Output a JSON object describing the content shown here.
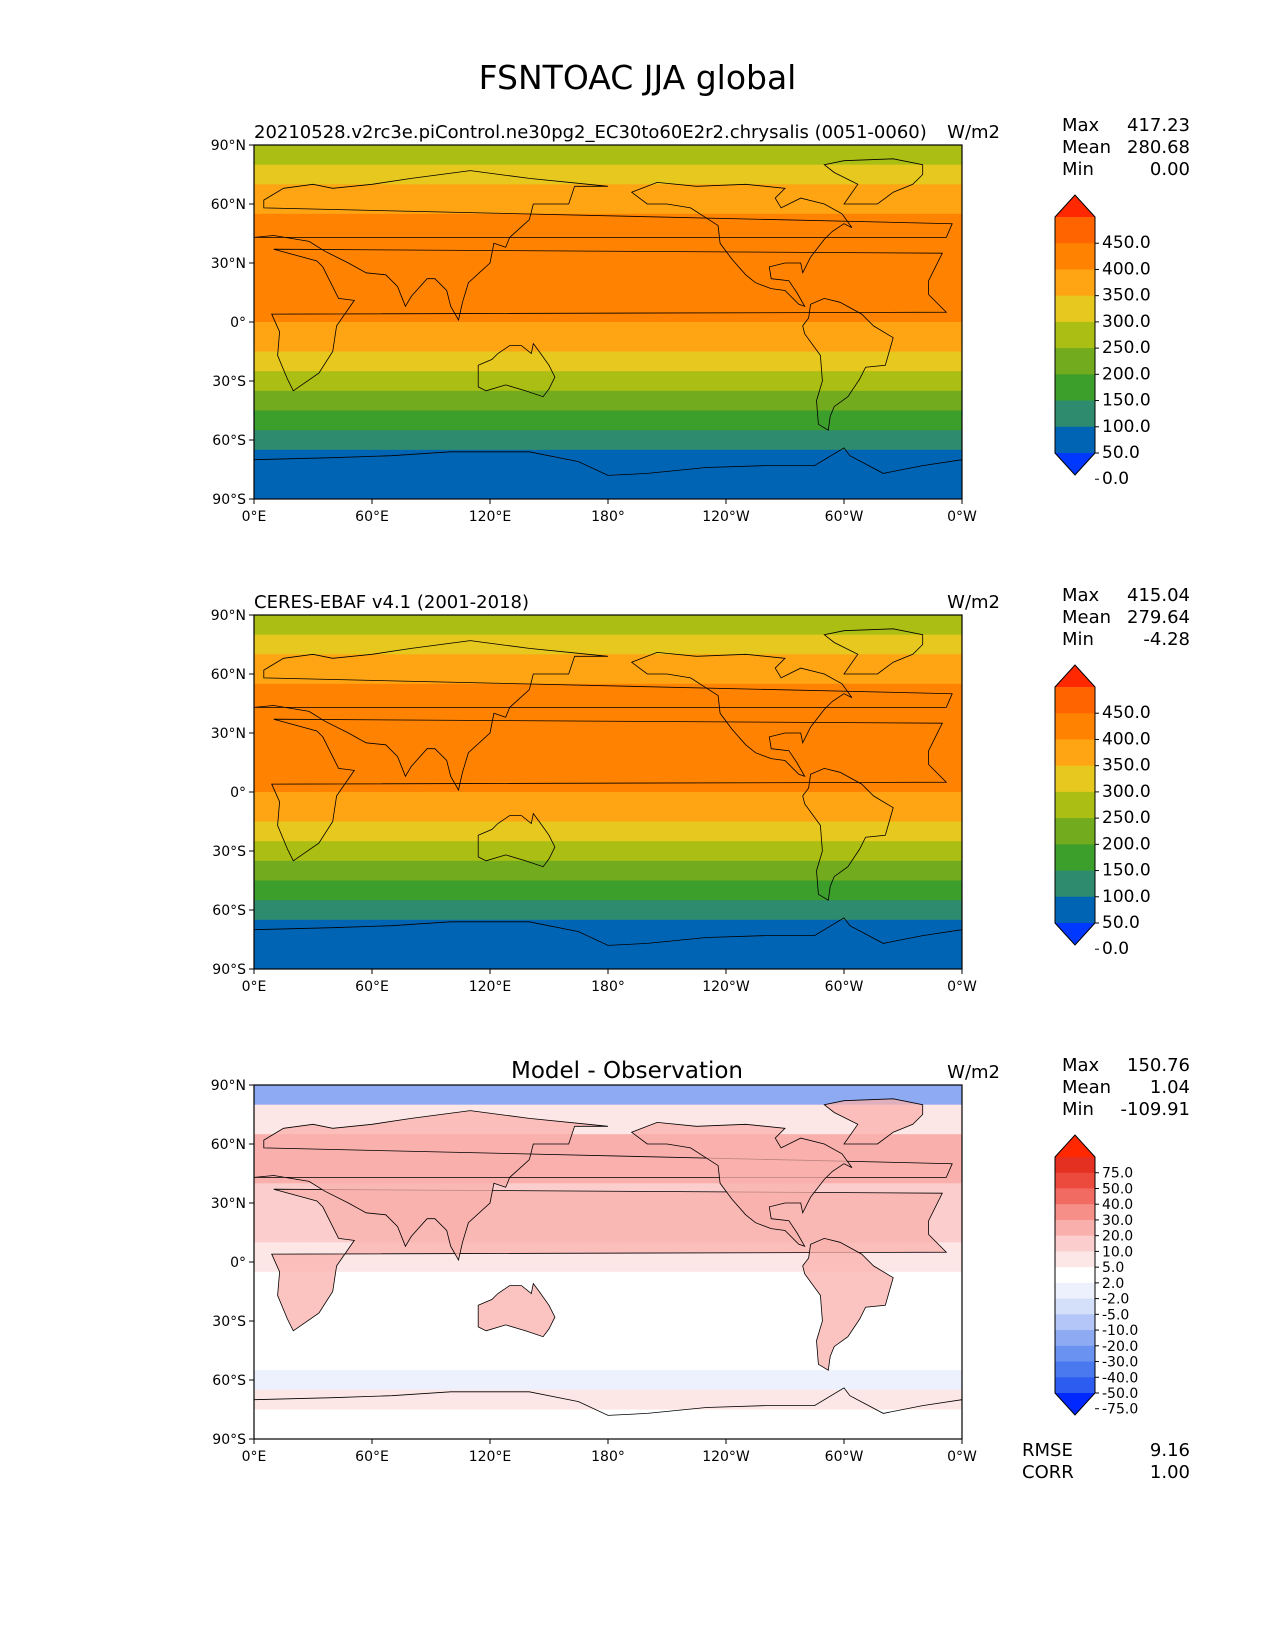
{
  "figure": {
    "title": "FSNTOAC JJA global"
  },
  "axes": {
    "lat_ticks": [
      "90°N",
      "60°N",
      "30°N",
      "0°",
      "30°S",
      "60°S",
      "90°S"
    ],
    "lon_ticks": [
      "0°E",
      "60°E",
      "120°E",
      "180°",
      "120°W",
      "60°W",
      "0°W"
    ]
  },
  "panels": [
    {
      "title_left": "20210528.v2rc3e.piControl.ne30pg2_EC30to60E2r2.chrysalis (0051-0060)",
      "title_center": "",
      "title_right": "W/m2",
      "stats": {
        "max_label": "Max",
        "max": "417.23",
        "mean_label": "Mean",
        "mean": "280.68",
        "min_label": "Min",
        "min": "0.00"
      },
      "colorbar_labels": [
        "450.0",
        "400.0",
        "350.0",
        "300.0",
        "250.0",
        "200.0",
        "150.0",
        "100.0",
        "50.0",
        "0.0"
      ]
    },
    {
      "title_left": "CERES-EBAF v4.1 (2001-2018)",
      "title_center": "",
      "title_right": "W/m2",
      "stats": {
        "max_label": "Max",
        "max": "415.04",
        "mean_label": "Mean",
        "mean": "279.64",
        "min_label": "Min",
        "min": "-4.28"
      },
      "colorbar_labels": [
        "450.0",
        "400.0",
        "350.0",
        "300.0",
        "250.0",
        "200.0",
        "150.0",
        "100.0",
        "50.0",
        "0.0"
      ]
    },
    {
      "title_left": "",
      "title_center": "Model - Observation",
      "title_right": "W/m2",
      "stats": {
        "max_label": "Max",
        "max": "150.76",
        "mean_label": "Mean",
        "mean": "1.04",
        "min_label": "Min",
        "min": "-109.91"
      },
      "colorbar_labels": [
        "75.0",
        "50.0",
        "40.0",
        "30.0",
        "20.0",
        "10.0",
        "5.0",
        "2.0",
        "-2.0",
        "-5.0",
        "-10.0",
        "-20.0",
        "-30.0",
        "-40.0",
        "-50.0",
        "-75.0"
      ],
      "footer": {
        "rmse_label": "RMSE",
        "rmse": "9.16",
        "corr_label": "CORR",
        "corr": "1.00"
      }
    }
  ],
  "colors": {
    "abs_scale": [
      "#0038ff",
      "#0064b4",
      "#2e8b6e",
      "#3c9f2c",
      "#73ab1e",
      "#aabe14",
      "#e6c81e",
      "#ffa514",
      "#ff8200",
      "#ff6400",
      "#ff2800"
    ],
    "diff_scale": [
      "#0028ff",
      "#2c5cf0",
      "#4a78ee",
      "#6a92f0",
      "#8eaaf3",
      "#b4c6f7",
      "#d4dffa",
      "#ecf1fd",
      "#ffffff",
      "#fde6e6",
      "#fccdcd",
      "#f9b0ac",
      "#f68f88",
      "#f26b62",
      "#ec4a3c",
      "#e43020",
      "#ff2800"
    ]
  },
  "chart_data": [
    {
      "type": "heatmap",
      "title": "20210528.v2rc3e.piControl.ne30pg2_EC30to60E2r2.chrysalis (0051-0060)",
      "units": "W/m2",
      "xlabel": "",
      "ylabel": "",
      "x_range_deg": [
        0,
        360
      ],
      "y_range_deg": [
        -90,
        90
      ],
      "zonal_bands": [
        {
          "lat": [
            80,
            90
          ],
          "value": 225
        },
        {
          "lat": [
            70,
            80
          ],
          "value": 275
        },
        {
          "lat": [
            55,
            70
          ],
          "value": 330
        },
        {
          "lat": [
            40,
            55
          ],
          "value": 365
        },
        {
          "lat": [
            15,
            40
          ],
          "value": 390
        },
        {
          "lat": [
            0,
            15
          ],
          "value": 360
        },
        {
          "lat": [
            -15,
            0
          ],
          "value": 330
        },
        {
          "lat": [
            -25,
            -15
          ],
          "value": 290
        },
        {
          "lat": [
            -35,
            -25
          ],
          "value": 240
        },
        {
          "lat": [
            -45,
            -35
          ],
          "value": 190
        },
        {
          "lat": [
            -55,
            -45
          ],
          "value": 140
        },
        {
          "lat": [
            -65,
            -55
          ],
          "value": 70
        },
        {
          "lat": [
            -85,
            -65
          ],
          "value": 25
        },
        {
          "lat": [
            -90,
            -85
          ],
          "value": 0
        }
      ],
      "stats": {
        "max": 417.23,
        "mean": 280.68,
        "min": 0.0
      },
      "levels": [
        0,
        50,
        100,
        150,
        200,
        250,
        300,
        350,
        400,
        450
      ]
    },
    {
      "type": "heatmap",
      "title": "CERES-EBAF v4.1 (2001-2018)",
      "units": "W/m2",
      "xlabel": "",
      "ylabel": "",
      "x_range_deg": [
        0,
        360
      ],
      "y_range_deg": [
        -90,
        90
      ],
      "zonal_bands": [
        {
          "lat": [
            80,
            90
          ],
          "value": 225
        },
        {
          "lat": [
            70,
            80
          ],
          "value": 270
        },
        {
          "lat": [
            55,
            70
          ],
          "value": 325
        },
        {
          "lat": [
            40,
            55
          ],
          "value": 360
        },
        {
          "lat": [
            15,
            40
          ],
          "value": 390
        },
        {
          "lat": [
            0,
            15
          ],
          "value": 360
        },
        {
          "lat": [
            -15,
            0
          ],
          "value": 330
        },
        {
          "lat": [
            -25,
            -15
          ],
          "value": 290
        },
        {
          "lat": [
            -35,
            -25
          ],
          "value": 240
        },
        {
          "lat": [
            -45,
            -35
          ],
          "value": 190
        },
        {
          "lat": [
            -55,
            -45
          ],
          "value": 140
        },
        {
          "lat": [
            -65,
            -55
          ],
          "value": 70
        },
        {
          "lat": [
            -75,
            -65
          ],
          "value": 30
        },
        {
          "lat": [
            -90,
            -75
          ],
          "value": 0
        }
      ],
      "stats": {
        "max": 415.04,
        "mean": 279.64,
        "min": -4.28
      },
      "levels": [
        0,
        50,
        100,
        150,
        200,
        250,
        300,
        350,
        400,
        450
      ]
    },
    {
      "type": "heatmap",
      "title": "Model - Observation",
      "units": "W/m2",
      "xlabel": "",
      "ylabel": "",
      "x_range_deg": [
        0,
        360
      ],
      "y_range_deg": [
        -90,
        90
      ],
      "zonal_bands": [
        {
          "lat": [
            80,
            90
          ],
          "value": -30
        },
        {
          "lat": [
            65,
            80
          ],
          "value": 3
        },
        {
          "lat": [
            40,
            65
          ],
          "value": 12
        },
        {
          "lat": [
            10,
            40
          ],
          "value": 6
        },
        {
          "lat": [
            -5,
            10
          ],
          "value": 3
        },
        {
          "lat": [
            -55,
            -5
          ],
          "value": 1
        },
        {
          "lat": [
            -65,
            -55
          ],
          "value": -3
        },
        {
          "lat": [
            -75,
            -65
          ],
          "value": 3
        },
        {
          "lat": [
            -90,
            -75
          ],
          "value": 1
        }
      ],
      "stats": {
        "max": 150.76,
        "mean": 1.04,
        "min": -109.91,
        "rmse": 9.16,
        "corr": 1.0
      },
      "levels": [
        -75,
        -50,
        -40,
        -30,
        -20,
        -10,
        -5,
        -2,
        2,
        5,
        10,
        20,
        30,
        40,
        50,
        75
      ]
    }
  ]
}
